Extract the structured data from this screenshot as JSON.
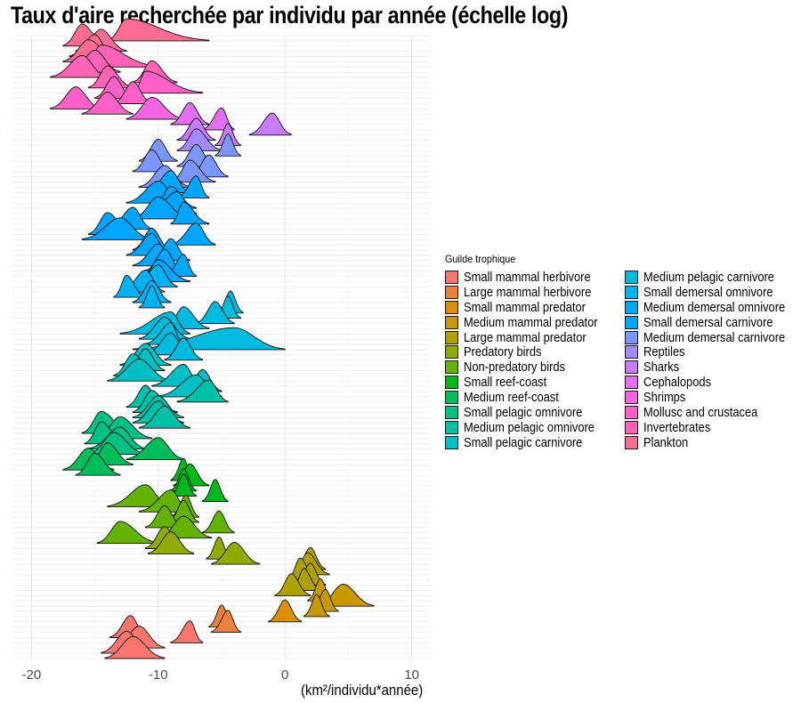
{
  "chart_data": {
    "type": "ridgeline",
    "title": "Taux d'aire recherchée par individu par année (échelle log)",
    "xlabel": "(km²/individu*année)",
    "ylabel": "",
    "xlim": [
      -21.5,
      11.5
    ],
    "x_ticks": [
      "-20",
      "-10",
      "0",
      "10"
    ],
    "grid": true,
    "legend": {
      "title": "Guilde trophique",
      "placement": "right",
      "columns": 2,
      "entries": [
        {
          "name": "Small mammal herbivore",
          "color": "#F8766D"
        },
        {
          "name": "Large mammal herbivore",
          "color": "#EC8239"
        },
        {
          "name": "Small mammal predator",
          "color": "#DB8E00"
        },
        {
          "name": "Medium mammal predator",
          "color": "#C79800"
        },
        {
          "name": "Large mammal predator",
          "color": "#AEA200"
        },
        {
          "name": "Predatory birds",
          "color": "#8FAA00"
        },
        {
          "name": "Non-predatory birds",
          "color": "#64B200"
        },
        {
          "name": "Small reef-coast",
          "color": "#00B81B"
        },
        {
          "name": "Medium reef-coast",
          "color": "#00BD5C"
        },
        {
          "name": "Small pelagic omnivore",
          "color": "#00C085"
        },
        {
          "name": "Medium pelagic omnivore",
          "color": "#00C1A7"
        },
        {
          "name": "Small pelagic carnivore",
          "color": "#00BFC4"
        },
        {
          "name": "Medium pelagic carnivore",
          "color": "#00BADE"
        },
        {
          "name": "Small demersal omnivore",
          "color": "#00B2F3"
        },
        {
          "name": "Medium demersal omnivore",
          "color": "#00A6FF"
        },
        {
          "name": "Small demersal carnivore",
          "color": "#00A5FF"
        },
        {
          "name": "Medium demersal carnivore",
          "color": "#7C96FF"
        },
        {
          "name": "Reptiles",
          "color": "#A58AFF"
        },
        {
          "name": "Sharks",
          "color": "#C77CFF"
        },
        {
          "name": "Cephalopods",
          "color": "#E36EF6"
        },
        {
          "name": "Shrimps",
          "color": "#F564E3"
        },
        {
          "name": "Mollusc and crustacea",
          "color": "#FF61C9"
        },
        {
          "name": "Invertebrates",
          "color": "#FF63B6"
        },
        {
          "name": "Plankton",
          "color": "#FF6C91"
        }
      ]
    },
    "series": [
      {
        "guild": "Small mammal herbivore",
        "ridges": [
          {
            "mode": -12.0,
            "lo": -14.2,
            "hi": -9.5
          },
          {
            "mode": -12.5,
            "lo": -14.5,
            "hi": -10.5
          },
          {
            "mode": -11.5,
            "lo": -13.5,
            "hi": -9.5
          },
          {
            "mode": -7.5,
            "lo": -9.0,
            "hi": -6.5
          },
          {
            "mode": -12.2,
            "lo": -13.8,
            "hi": -10.8
          }
        ]
      },
      {
        "guild": "Large mammal herbivore",
        "ridges": [
          {
            "mode": -4.5,
            "lo": -5.8,
            "hi": -3.5
          },
          {
            "mode": -5.0,
            "lo": -6.0,
            "hi": -4.0
          }
        ]
      },
      {
        "guild": "Small mammal predator",
        "ridges": [
          {
            "mode": 0.0,
            "lo": -1.3,
            "hi": 1.3
          }
        ]
      },
      {
        "guild": "Medium mammal predator",
        "ridges": [
          {
            "mode": 2.5,
            "lo": 1.5,
            "hi": 3.5
          },
          {
            "mode": 3.2,
            "lo": 2.0,
            "hi": 4.2
          },
          {
            "mode": 4.6,
            "lo": 2.5,
            "hi": 7.0
          },
          {
            "mode": 2.8,
            "lo": 1.8,
            "hi": 3.8
          }
        ]
      },
      {
        "guild": "Large mammal predator",
        "ridges": [
          {
            "mode": 0.5,
            "lo": -0.8,
            "hi": 2.0
          },
          {
            "mode": 1.5,
            "lo": 0.5,
            "hi": 2.8
          },
          {
            "mode": 2.0,
            "lo": 0.8,
            "hi": 3.2
          },
          {
            "mode": 1.2,
            "lo": 0.2,
            "hi": 2.5
          },
          {
            "mode": 1.8,
            "lo": 0.5,
            "hi": 3.5
          },
          {
            "mode": 2.0,
            "lo": 0.8,
            "hi": 3.2
          }
        ]
      },
      {
        "guild": "Predatory birds",
        "ridges": [
          {
            "mode": -4.0,
            "lo": -5.8,
            "hi": -2.0
          },
          {
            "mode": -5.2,
            "lo": -6.2,
            "hi": -4.2
          },
          {
            "mode": -9.0,
            "lo": -10.8,
            "hi": -7.2
          },
          {
            "mode": -9.5,
            "lo": -11.0,
            "hi": -8.0
          }
        ]
      },
      {
        "guild": "Non-predatory birds",
        "ridges": [
          {
            "mode": -13.0,
            "lo": -14.8,
            "hi": -10.0
          },
          {
            "mode": -8.0,
            "lo": -10.0,
            "hi": -5.8
          },
          {
            "mode": -5.2,
            "lo": -6.5,
            "hi": -4.0
          },
          {
            "mode": -9.5,
            "lo": -11.0,
            "hi": -8.0
          },
          {
            "mode": -8.0,
            "lo": -9.2,
            "hi": -6.8
          },
          {
            "mode": -7.8,
            "lo": -9.0,
            "hi": -6.8
          },
          {
            "mode": -9.0,
            "lo": -11.5,
            "hi": -7.5
          },
          {
            "mode": -11.0,
            "lo": -14.0,
            "hi": -9.0
          }
        ]
      },
      {
        "guild": "Small reef-coast",
        "ridges": [
          {
            "mode": -5.5,
            "lo": -6.5,
            "hi": -4.5
          },
          {
            "mode": -8.0,
            "lo": -9.0,
            "hi": -7.0
          },
          {
            "mode": -8.0,
            "lo": -9.0,
            "hi": -7.0
          },
          {
            "mode": -7.5,
            "lo": -8.8,
            "hi": -6.0
          },
          {
            "mode": -8.0,
            "lo": -9.0,
            "hi": -7.2
          }
        ]
      },
      {
        "guild": "Medium reef-coast",
        "ridges": [
          {
            "mode": -15.0,
            "lo": -16.5,
            "hi": -13.0
          },
          {
            "mode": -15.5,
            "lo": -17.5,
            "hi": -13.5
          },
          {
            "mode": -14.0,
            "lo": -15.5,
            "hi": -12.0
          },
          {
            "mode": -10.0,
            "lo": -12.5,
            "hi": -8.0
          }
        ]
      },
      {
        "guild": "Small pelagic omnivore",
        "ridges": [
          {
            "mode": -13.5,
            "lo": -15.5,
            "hi": -11.0
          },
          {
            "mode": -13.0,
            "lo": -15.5,
            "hi": -11.0
          },
          {
            "mode": -14.5,
            "lo": -15.8,
            "hi": -12.5
          },
          {
            "mode": -13.0,
            "lo": -15.0,
            "hi": -10.5
          },
          {
            "mode": -14.5,
            "lo": -16.0,
            "hi": -12.0
          }
        ]
      },
      {
        "guild": "Medium pelagic omnivore",
        "ridges": [
          {
            "mode": -9.5,
            "lo": -11.5,
            "hi": -7.5
          },
          {
            "mode": -10.0,
            "lo": -12.0,
            "hi": -8.0
          },
          {
            "mode": -10.0,
            "lo": -12.0,
            "hi": -8.0
          },
          {
            "mode": -10.5,
            "lo": -12.0,
            "hi": -8.5
          },
          {
            "mode": -11.0,
            "lo": -12.5,
            "hi": -9.5
          },
          {
            "mode": -6.0,
            "lo": -8.5,
            "hi": -4.5
          }
        ]
      },
      {
        "guild": "Small pelagic carnivore",
        "ridges": [
          {
            "mode": -7.0,
            "lo": -10.0,
            "hi": -5.0
          },
          {
            "mode": -6.5,
            "lo": -8.0,
            "hi": -5.0
          },
          {
            "mode": -8.0,
            "lo": -10.5,
            "hi": -6.5
          },
          {
            "mode": -11.5,
            "lo": -14.0,
            "hi": -9.0
          },
          {
            "mode": -12.0,
            "lo": -13.5,
            "hi": -10.0
          },
          {
            "mode": -11.0,
            "lo": -12.5,
            "hi": -9.5
          },
          {
            "mode": -11.0,
            "lo": -13.0,
            "hi": -9.0
          }
        ]
      },
      {
        "guild": "Medium pelagic carnivore",
        "ridges": [
          {
            "mode": -8.0,
            "lo": -9.5,
            "hi": -6.5
          },
          {
            "mode": -9.0,
            "lo": -11.0,
            "hi": -7.5
          },
          {
            "mode": -4.0,
            "lo": -12.0,
            "hi": 0.0
          },
          {
            "mode": -9.0,
            "lo": -11.0,
            "hi": -8.0
          },
          {
            "mode": -9.5,
            "lo": -11.5,
            "hi": -7.5
          },
          {
            "mode": -9.0,
            "lo": -13.0,
            "hi": -7.5
          },
          {
            "mode": -8.0,
            "lo": -9.5,
            "hi": -6.0
          },
          {
            "mode": -5.5,
            "lo": -7.0,
            "hi": -4.0
          },
          {
            "mode": -4.5,
            "lo": -5.5,
            "hi": -3.5
          },
          {
            "mode": -4.3,
            "lo": -5.3,
            "hi": -3.3
          }
        ]
      },
      {
        "guild": "Small demersal omnivore",
        "ridges": [
          {
            "mode": -10.5,
            "lo": -11.5,
            "hi": -9.5
          },
          {
            "mode": -10.5,
            "lo": -12.0,
            "hi": -9.0
          },
          {
            "mode": -12.5,
            "lo": -13.5,
            "hi": -11.0
          },
          {
            "mode": -11.0,
            "lo": -13.0,
            "hi": -9.5
          },
          {
            "mode": -10.0,
            "lo": -12.0,
            "hi": -8.5
          }
        ]
      },
      {
        "guild": "Medium demersal omnivore",
        "ridges": [
          {
            "mode": -10.0,
            "lo": -11.5,
            "hi": -7.5
          },
          {
            "mode": -8.0,
            "lo": -9.5,
            "hi": -7.0
          },
          {
            "mode": -9.5,
            "lo": -11.0,
            "hi": -8.0
          },
          {
            "mode": -10.0,
            "lo": -12.0,
            "hi": -8.5
          },
          {
            "mode": -9.0,
            "lo": -10.5,
            "hi": -7.5
          },
          {
            "mode": -10.5,
            "lo": -12.5,
            "hi": -9.0
          },
          {
            "mode": -10.5,
            "lo": -12.0,
            "hi": -9.0
          },
          {
            "mode": -7.0,
            "lo": -9.0,
            "hi": -5.5
          }
        ]
      },
      {
        "guild": "Small demersal carnivore",
        "ridges": [
          {
            "mode": -13.0,
            "lo": -16.0,
            "hi": -10.5
          },
          {
            "mode": -14.0,
            "lo": -15.5,
            "hi": -12.0
          },
          {
            "mode": -12.0,
            "lo": -14.0,
            "hi": -10.5
          },
          {
            "mode": -8.0,
            "lo": -9.0,
            "hi": -6.0
          },
          {
            "mode": -10.0,
            "lo": -12.0,
            "hi": -7.5
          },
          {
            "mode": -8.5,
            "lo": -11.0,
            "hi": -7.0
          },
          {
            "mode": -9.0,
            "lo": -10.5,
            "hi": -7.0
          },
          {
            "mode": -10.0,
            "lo": -12.5,
            "hi": -8.0
          },
          {
            "mode": -7.0,
            "lo": -8.5,
            "hi": -6.0
          },
          {
            "mode": -9.0,
            "lo": -11.0,
            "hi": -7.5
          }
        ]
      },
      {
        "guild": "Medium demersal carnivore",
        "ridges": [
          {
            "mode": -9.5,
            "lo": -11.5,
            "hi": -7.5
          },
          {
            "mode": -7.5,
            "lo": -9.0,
            "hi": -5.5
          },
          {
            "mode": -6.0,
            "lo": -7.5,
            "hi": -4.5
          },
          {
            "mode": -10.5,
            "lo": -12.0,
            "hi": -9.0
          },
          {
            "mode": -7.0,
            "lo": -8.5,
            "hi": -5.5
          },
          {
            "mode": -10.0,
            "lo": -11.5,
            "hi": -8.5
          },
          {
            "mode": -4.5,
            "lo": -5.5,
            "hi": -3.5
          }
        ]
      },
      {
        "guild": "Reptiles",
        "ridges": [
          {
            "mode": -7.0,
            "lo": -8.5,
            "hi": -5.0
          }
        ]
      },
      {
        "guild": "Sharks",
        "ridges": [
          {
            "mode": -4.5,
            "lo": -5.5,
            "hi": -3.5
          },
          {
            "mode": -7.0,
            "lo": -8.5,
            "hi": -5.5
          },
          {
            "mode": -1.0,
            "lo": -2.8,
            "hi": 0.5
          }
        ]
      },
      {
        "guild": "Cephalopods",
        "ridges": [
          {
            "mode": -5.0,
            "lo": -6.5,
            "hi": -4.0
          },
          {
            "mode": -7.5,
            "lo": -9.0,
            "hi": -6.0
          }
        ]
      },
      {
        "guild": "Shrimps",
        "ridges": [
          {
            "mode": -10.5,
            "lo": -12.5,
            "hi": -8.0
          }
        ]
      },
      {
        "guild": "Mollusc and crustacea",
        "ridges": [
          {
            "mode": -14.0,
            "lo": -16.0,
            "hi": -12.0
          },
          {
            "mode": -16.5,
            "lo": -18.5,
            "hi": -14.5
          },
          {
            "mode": -12.0,
            "lo": -13.5,
            "hi": -10.5
          },
          {
            "mode": -13.5,
            "lo": -15.0,
            "hi": -12.0
          },
          {
            "mode": -11.0,
            "lo": -12.0,
            "hi": -6.5
          }
        ]
      },
      {
        "guild": "Invertebrates",
        "ridges": [
          {
            "mode": -14.0,
            "lo": -15.5,
            "hi": -12.0
          },
          {
            "mode": -10.5,
            "lo": -12.0,
            "hi": -8.5
          },
          {
            "mode": -16.0,
            "lo": -18.5,
            "hi": -14.0
          },
          {
            "mode": -15.0,
            "lo": -17.0,
            "hi": -13.0
          },
          {
            "mode": -14.5,
            "lo": -16.0,
            "hi": -10.0
          }
        ]
      },
      {
        "guild": "Plankton",
        "ridges": [
          {
            "mode": -15.5,
            "lo": -17.5,
            "hi": -13.0
          },
          {
            "mode": -15.0,
            "lo": -17.0,
            "hi": -13.5
          },
          {
            "mode": -14.5,
            "lo": -16.5,
            "hi": -12.5
          },
          {
            "mode": -16.0,
            "lo": -17.5,
            "hi": -14.0
          },
          {
            "mode": -12.5,
            "lo": -14.0,
            "hi": -6.0
          }
        ]
      }
    ]
  }
}
